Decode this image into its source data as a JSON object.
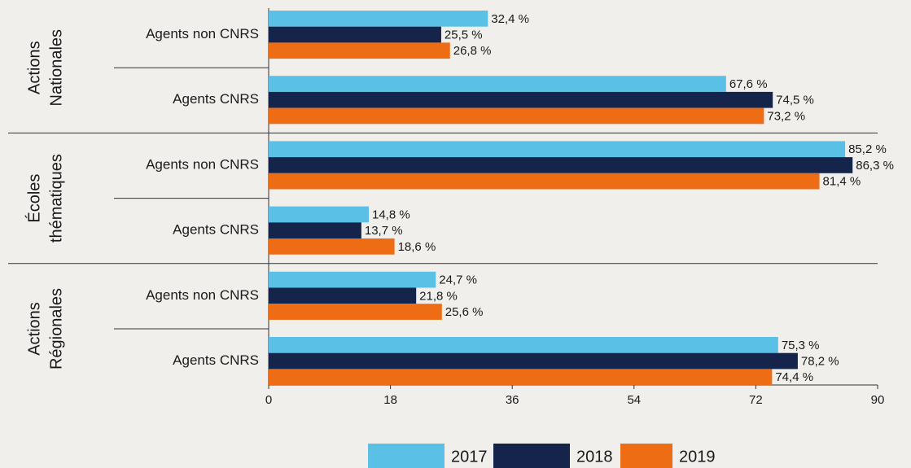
{
  "chart_data": {
    "type": "bar",
    "orientation": "horizontal",
    "groups": [
      [
        "Actions",
        "Nationales"
      ],
      [
        "Écoles",
        "thématiques"
      ],
      [
        "Actions",
        "Régionales"
      ]
    ],
    "categories": [
      "Agents non CNRS",
      "Agents CNRS",
      "Agents non CNRS",
      "Agents CNRS",
      "Agents non CNRS",
      "Agents CNRS"
    ],
    "series": [
      {
        "name": "2017",
        "color": "#5bc0e6",
        "values": [
          32.4,
          67.6,
          85.2,
          14.8,
          24.7,
          75.3
        ],
        "value_labels": [
          "32,4 %",
          "67,6 %",
          "85,2 %",
          "14,8 %",
          "24,7 %",
          "75,3 %"
        ]
      },
      {
        "name": "2018",
        "color": "#14244a",
        "values": [
          25.5,
          74.5,
          86.3,
          13.7,
          21.8,
          78.2
        ],
        "value_labels": [
          "25,5 %",
          "74,5 %",
          "86,3 %",
          "13,7 %",
          "21,8 %",
          "78,2 %"
        ]
      },
      {
        "name": "2019",
        "color": "#ee6c14",
        "values": [
          26.8,
          73.2,
          81.4,
          18.6,
          25.6,
          74.4
        ],
        "value_labels": [
          "26,8 %",
          "73,2 %",
          "81,4 %",
          "18,6 %",
          "25,6 %",
          "74,4 %"
        ]
      }
    ],
    "xlim": [
      0,
      90
    ],
    "xticks": [
      0,
      18,
      36,
      54,
      72,
      90
    ],
    "legend": "bottom"
  }
}
